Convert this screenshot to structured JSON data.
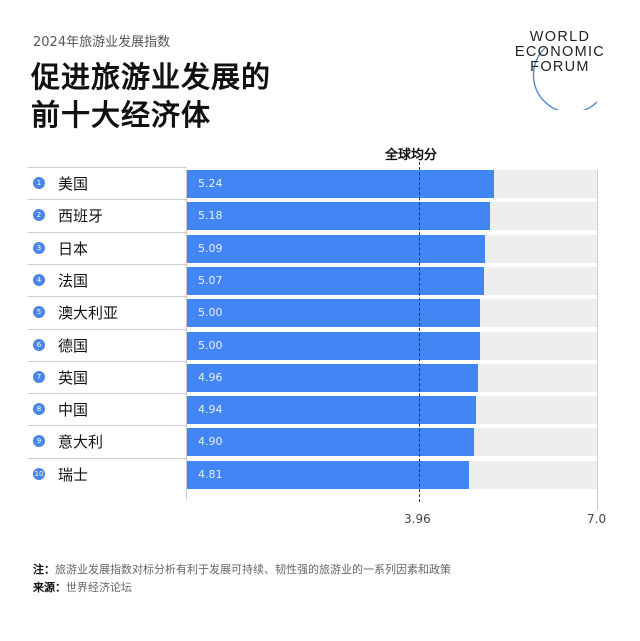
{
  "header": {
    "subtitle": "2024年旅游业发展指数",
    "title_line1": "促进旅游业发展的",
    "title_line2": "前十大经济体"
  },
  "logo": {
    "line1": "WORLD",
    "line2": "ECONOMIC",
    "line3": "FORUM"
  },
  "colors": {
    "bar": "#4285f4",
    "track": "#eeeeee",
    "badge": "#4a86e8"
  },
  "chart_data": {
    "type": "bar",
    "orientation": "horizontal",
    "title": "促进旅游业发展的前十大经济体",
    "subtitle": "2024年旅游业发展指数",
    "categories": [
      "美国",
      "西班牙",
      "日本",
      "法国",
      "澳大利亚",
      "德国",
      "英国",
      "中国",
      "意大利",
      "瑞士"
    ],
    "ranks": [
      "1",
      "2",
      "3",
      "4",
      "5",
      "6",
      "7",
      "8",
      "9",
      "10"
    ],
    "values": [
      5.24,
      5.18,
      5.09,
      5.07,
      5.0,
      5.0,
      4.96,
      4.94,
      4.9,
      4.81
    ],
    "value_labels": [
      "5.24",
      "5.18",
      "5.09",
      "5.07",
      "5.00",
      "5.00",
      "4.96",
      "4.94",
      "4.90",
      "4.81"
    ],
    "reference_line": {
      "label": "全球均分",
      "value": 3.96
    },
    "xlim": [
      0,
      7.0
    ],
    "tick_labels": [
      "3.96",
      "7.0"
    ],
    "xlabel": "",
    "ylabel": "",
    "grid": false,
    "legend": null
  },
  "footer": {
    "note_label": "注：",
    "note_text": "旅游业发展指数对标分析有利于发展可持续、韧性强的旅游业的一系列因素和政策",
    "source_label": "来源：",
    "source_text": "世界经济论坛"
  }
}
